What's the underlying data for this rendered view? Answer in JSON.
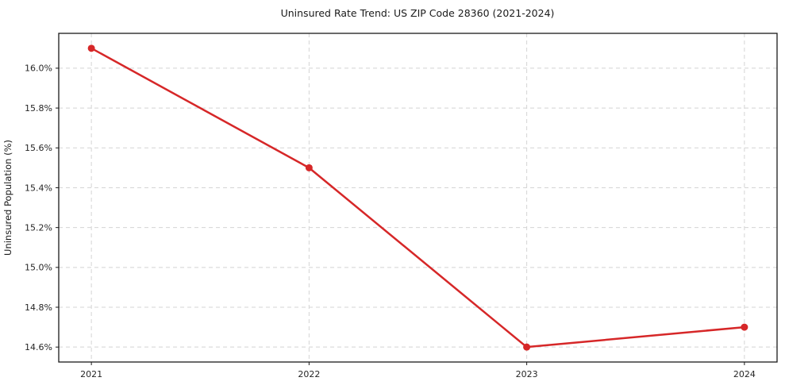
{
  "chart_data": {
    "type": "line",
    "title": "Uninsured Rate Trend: US ZIP Code 28360 (2021-2024)",
    "xlabel": "",
    "ylabel": "Uninsured Population (%)",
    "x": [
      2021,
      2022,
      2023,
      2024
    ],
    "x_tick_labels": [
      "2021",
      "2022",
      "2023",
      "2024"
    ],
    "series": [
      {
        "name": "uninsured-rate",
        "values": [
          16.1,
          15.5,
          14.6,
          14.7
        ],
        "color": "#d62728",
        "marker": "circle",
        "line_width": 2.5
      }
    ],
    "y_ticks": [
      {
        "value": 14.6,
        "label": "14.6%"
      },
      {
        "value": 14.8,
        "label": "14.8%"
      },
      {
        "value": 15.0,
        "label": "15.0%"
      },
      {
        "value": 15.2,
        "label": "15.2%"
      },
      {
        "value": 15.4,
        "label": "15.4%"
      },
      {
        "value": 15.6,
        "label": "15.6%"
      },
      {
        "value": 15.8,
        "label": "15.8%"
      },
      {
        "value": 16.0,
        "label": "16.0%"
      }
    ],
    "ylim": [
      14.525,
      16.175
    ],
    "xlim": [
      2020.85,
      2024.15
    ],
    "grid": "dashed",
    "grid_color": "#d4d4d4",
    "spine_color": "#1a1a1a",
    "legend": "none",
    "background_color": "#ffffff"
  }
}
